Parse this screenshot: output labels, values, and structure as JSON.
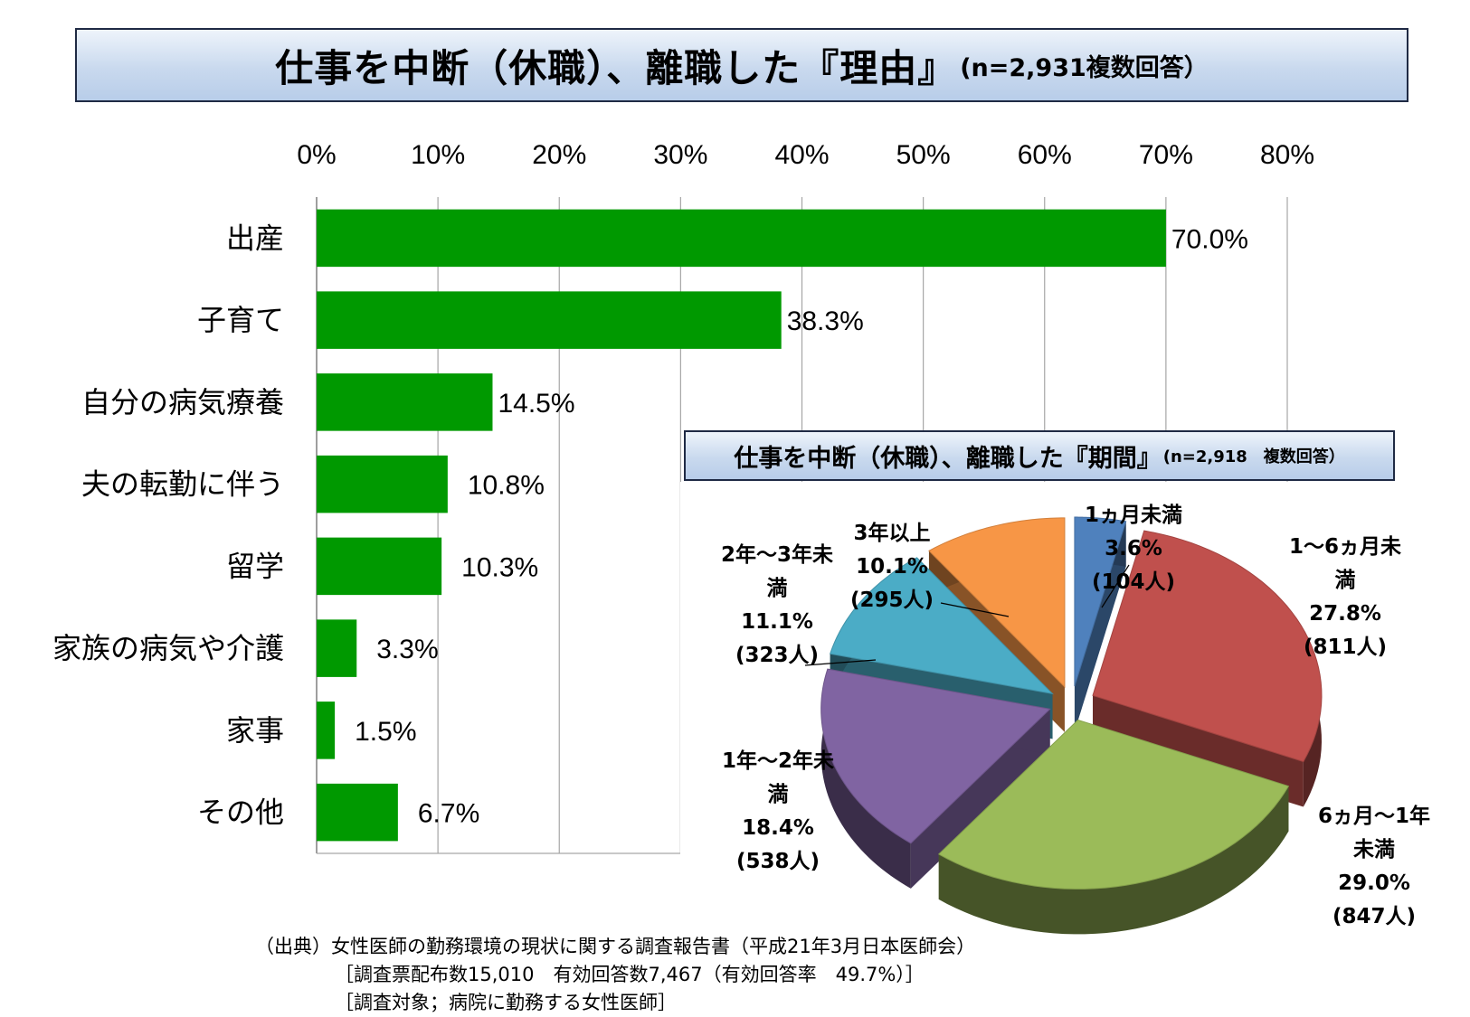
{
  "title": {
    "main": "仕事を中断（休職）、離職した『理由』",
    "sub": "(n=2,931複数回答）"
  },
  "chart_data": [
    {
      "type": "bar",
      "orientation": "horizontal",
      "categories": [
        "出産",
        "子育て",
        "自分の病気療養",
        "夫の転勤に伴う",
        "留学",
        "家族の病気や介護",
        "家事",
        "その他"
      ],
      "values": [
        70.0,
        38.3,
        14.5,
        10.8,
        10.3,
        3.3,
        1.5,
        6.7
      ],
      "value_labels": [
        "70.0%",
        "38.3%",
        "14.5%",
        "10.8%",
        "10.3%",
        "3.3%",
        "1.5%",
        "6.7%"
      ],
      "ticks": [
        "0%",
        "10%",
        "20%",
        "30%",
        "40%",
        "50%",
        "60%",
        "70%",
        "80%"
      ],
      "xlim": [
        0,
        80
      ],
      "axis_position": "top",
      "grid": true,
      "color": "#009900"
    },
    {
      "type": "pie",
      "style": "3d-exploded",
      "title": {
        "main": "仕事を中断（休職）、離職した『期間』",
        "sub": "(n=2,918　複数回答）"
      },
      "slices": [
        {
          "label_lines": [
            "1ヵ月未満"
          ],
          "percent": "3.6%",
          "count": "(104人)",
          "value": 3.6,
          "color": "#4f81bd"
        },
        {
          "label_lines": [
            "1～6ヵ月未",
            "満"
          ],
          "percent": "27.8%",
          "count": "(811人)",
          "value": 27.8,
          "color": "#c0504d"
        },
        {
          "label_lines": [
            "6ヵ月～1年",
            "未満"
          ],
          "percent": "29.0%",
          "count": "(847人)",
          "value": 29.0,
          "color": "#9bbb59"
        },
        {
          "label_lines": [
            "1年～2年未",
            "満"
          ],
          "percent": "18.4%",
          "count": "(538人)",
          "value": 18.4,
          "color": "#8064a2"
        },
        {
          "label_lines": [
            "2年～3年未",
            "満"
          ],
          "percent": "11.1%",
          "count": "(323人)",
          "value": 11.1,
          "color": "#4bacc6"
        },
        {
          "label_lines": [
            "3年以上"
          ],
          "percent": "10.1%",
          "count": "(295人)",
          "value": 10.1,
          "color": "#f79646"
        }
      ]
    }
  ],
  "source": {
    "line1": "（出典）女性医師の勤務環境の現状に関する調査報告書（平成21年3月日本医師会）",
    "line2": "［調査票配布数15,010　有効回答数7,467（有効回答率　49.7%）］",
    "line3": "［調査対象；病院に勤務する女性医師］"
  }
}
